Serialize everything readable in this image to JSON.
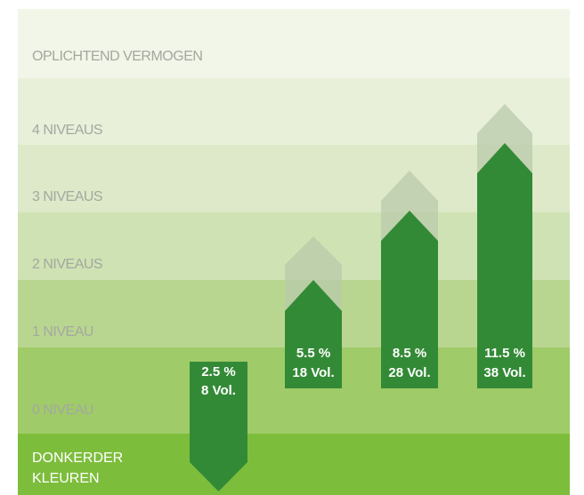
{
  "title": "OPLICHTEND VERMOGEN",
  "levels": [
    "4 NIVEAUS",
    "3 NIVEAUS",
    "2 NIVEAUS",
    "1 NIVEAU",
    "0 NIVEAU"
  ],
  "darker": [
    "DONKERDER",
    "KLEUREN"
  ],
  "arrows": [
    {
      "percent": "2.5 %",
      "volume": "8 Vol."
    },
    {
      "percent": "5.5 %",
      "volume": "18 Vol."
    },
    {
      "percent": "8.5 %",
      "volume": "28 Vol."
    },
    {
      "percent": "11.5 %",
      "volume": "38 Vol."
    }
  ]
}
